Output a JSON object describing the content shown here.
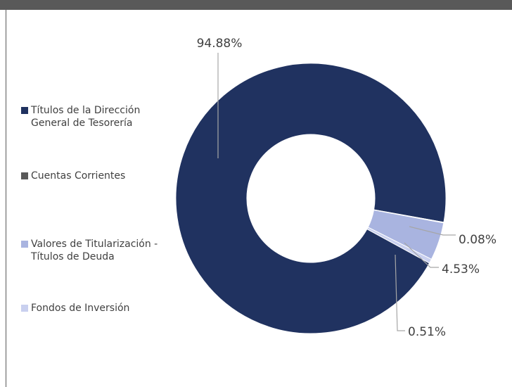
{
  "chart_data": {
    "type": "pie",
    "categories": [
      "Títulos de la Dirección General de Tesorería",
      "Cuentas Corrientes",
      "Valores de Titularización - Títulos de Deuda",
      "Fondos de Inversión"
    ],
    "values": [
      94.88,
      0.08,
      4.53,
      0.51
    ],
    "value_labels": [
      "94.88%",
      "0.08%",
      "4.53%",
      "0.51%"
    ],
    "colors": [
      "#203260",
      "#595959",
      "#a9b4e0",
      "#c9d0ef"
    ],
    "legend": "left",
    "donut": true
  }
}
